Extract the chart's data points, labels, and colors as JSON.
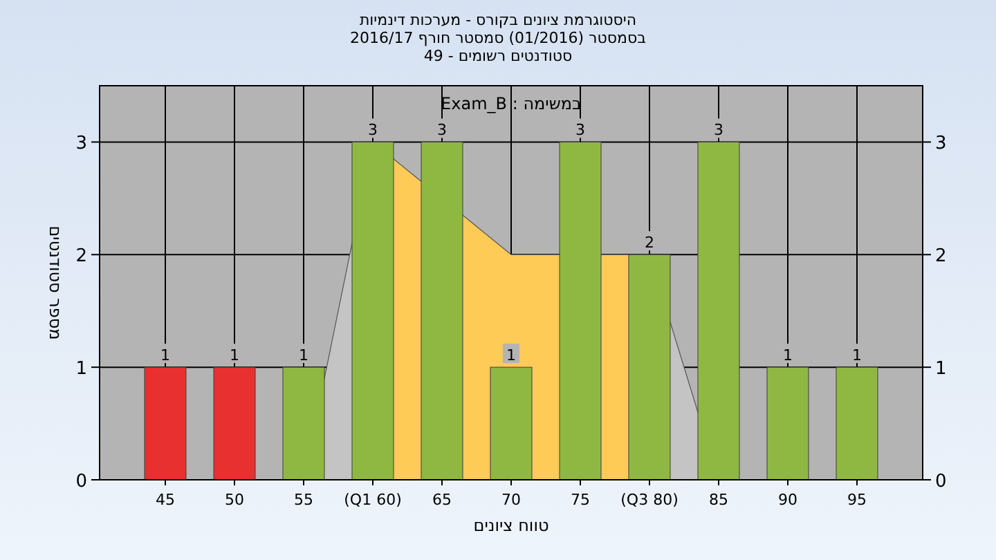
{
  "chart_data": {
    "type": "bar",
    "title": "היסטוגרמת ציונים בקורס - מערכות דינמיות",
    "subtitle": "בסמסטר (01/2016) סמסטר חורף 2016/17\nסטודנטים רשומים - 49",
    "annotations": [
      "במשימה : Exam_B"
    ],
    "xlabel": "טווח ציונים",
    "ylabel": "מספר סטודנטים",
    "categories": [
      "45",
      "50",
      "55",
      "(Q1 60)",
      "65",
      "70",
      "75",
      "(Q3 80)",
      "85",
      "90",
      "95"
    ],
    "series": [
      {
        "type": "area",
        "color": "#c4c4c4",
        "values": [
          null,
          null,
          0,
          3,
          null,
          null,
          null,
          null,
          null,
          null,
          null
        ]
      },
      {
        "type": "area",
        "color": "#c4c4c4",
        "values": [
          null,
          null,
          null,
          null,
          null,
          null,
          null,
          2,
          0,
          null,
          null
        ]
      },
      {
        "type": "area",
        "color": "#fecb57",
        "values": [
          null,
          null,
          null,
          3,
          null,
          2,
          null,
          2,
          null,
          null,
          null
        ]
      },
      {
        "colors": [
          "#e83030",
          "#e83030",
          "#8fb842",
          "#8fb842",
          "#8fb842",
          "#8fb842",
          "#8fb842",
          "#8fb842",
          "#8fb842",
          "#8fb842",
          "#8fb842"
        ],
        "values": [
          1,
          1,
          1,
          3,
          3,
          1,
          3,
          2,
          3,
          1,
          1
        ],
        "value_labels": [
          "1",
          "1",
          "1",
          "3",
          "3",
          "1",
          "3",
          "2",
          "3",
          "1",
          "1"
        ]
      }
    ],
    "grid": true,
    "ylim": [
      0,
      3.5
    ],
    "yticks": [
      0,
      1,
      2,
      3
    ],
    "y2lim": [
      0,
      3.5
    ],
    "y2ticks": [
      0,
      1,
      2,
      3
    ]
  }
}
